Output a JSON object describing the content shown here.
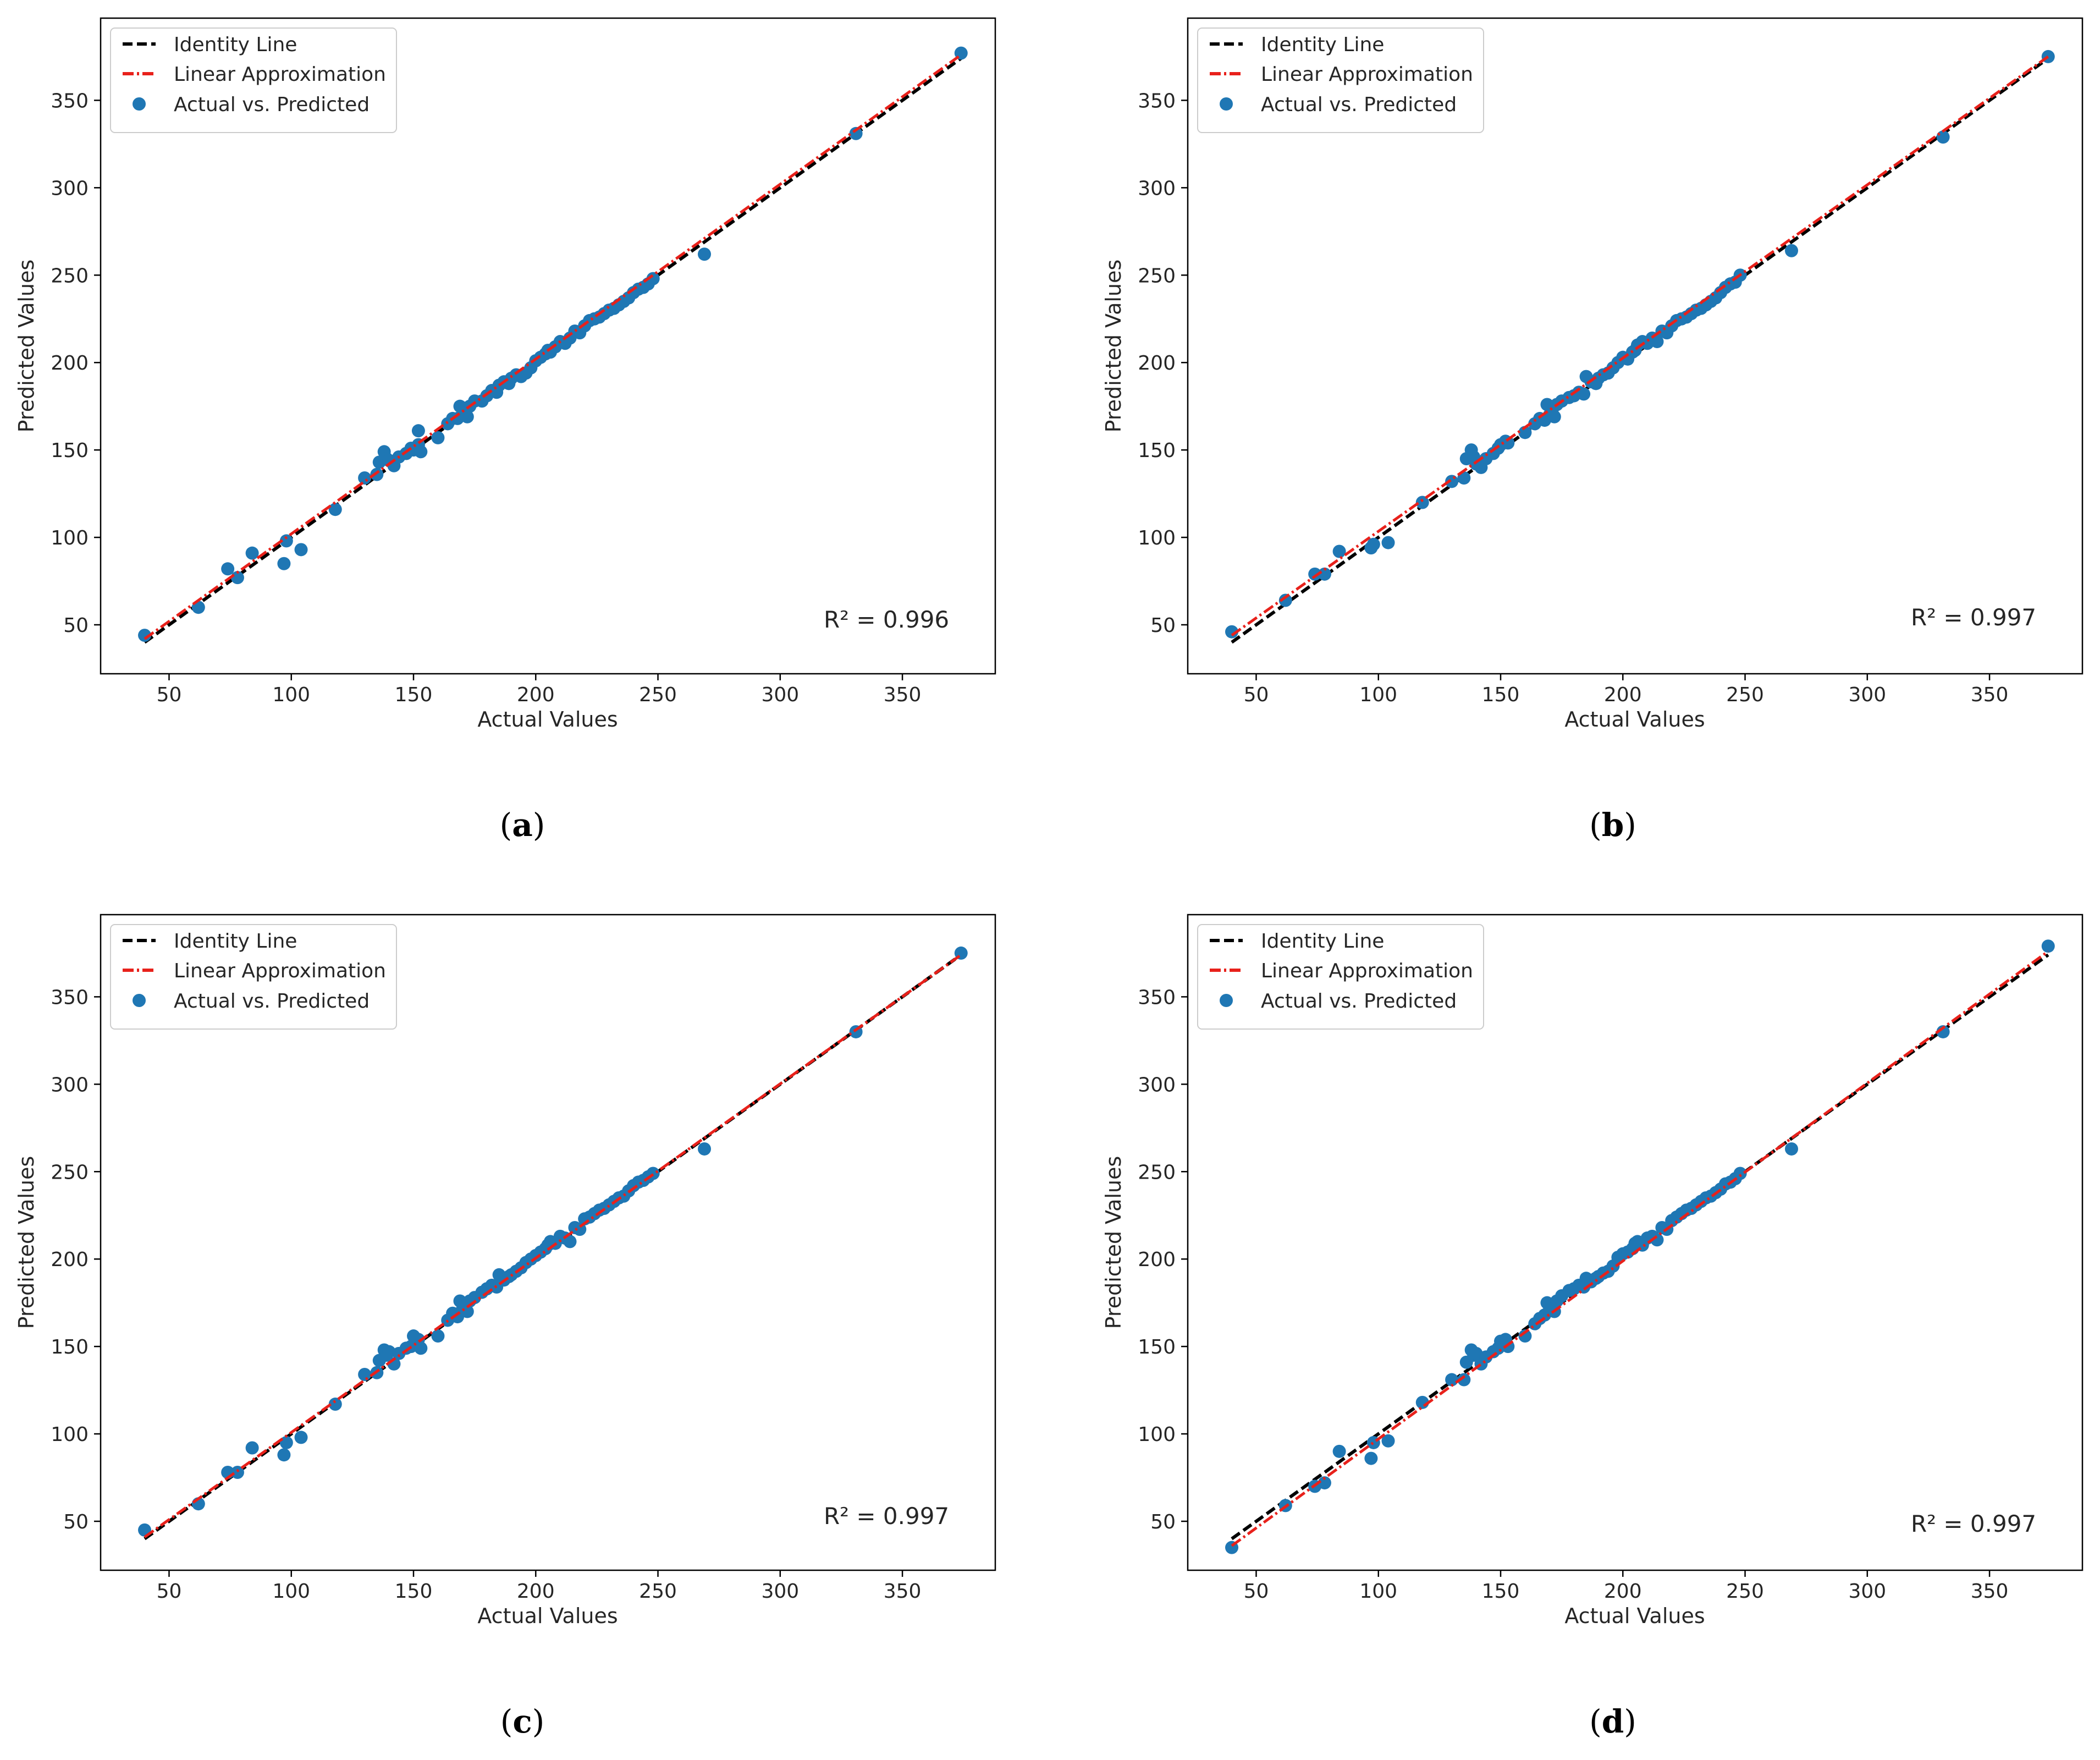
{
  "colors": {
    "identity": "#000000",
    "linear": "#e8211b",
    "points": "#1f77b4",
    "axes": "#000000",
    "legend_border": "#cccccc"
  },
  "chart_data": [
    {
      "type": "scatter",
      "panel": "a",
      "caption": "a",
      "xlabel": "Actual Values",
      "ylabel": "Predicted Values",
      "xlim": [
        22,
        388
      ],
      "ylim": [
        22,
        397
      ],
      "xticks": [
        50,
        100,
        150,
        200,
        250,
        300,
        350
      ],
      "yticks": [
        50,
        100,
        150,
        200,
        250,
        300,
        350
      ],
      "r2_text": "R² = 0.996",
      "legend": [
        "Identity Line",
        "Linear Approximation",
        "Actual vs. Predicted"
      ],
      "identity_line": [
        [
          40,
          40
        ],
        [
          374,
          374
        ]
      ],
      "linear_fit": [
        [
          40,
          42
        ],
        [
          374,
          376
        ]
      ],
      "points": {
        "x": [
          40,
          62,
          74,
          78,
          84,
          97,
          98,
          104,
          118,
          130,
          135,
          136,
          138,
          139,
          140,
          142,
          144,
          147,
          149,
          150,
          152,
          152,
          153,
          160,
          164,
          166,
          168,
          169,
          170,
          171,
          172,
          173,
          175,
          178,
          180,
          182,
          184,
          185,
          187,
          189,
          190,
          192,
          194,
          196,
          198,
          200,
          202,
          204,
          205,
          206,
          208,
          210,
          212,
          214,
          216,
          218,
          220,
          222,
          224,
          226,
          228,
          230,
          232,
          234,
          236,
          238,
          240,
          242,
          244,
          246,
          248,
          269,
          331,
          374
        ],
        "y": [
          44,
          60,
          82,
          77,
          91,
          85,
          98,
          93,
          116,
          134,
          136,
          143,
          149,
          145,
          144,
          141,
          146,
          148,
          151,
          150,
          161,
          153,
          149,
          157,
          165,
          168,
          168,
          175,
          170,
          172,
          169,
          175,
          178,
          178,
          181,
          184,
          183,
          187,
          189,
          188,
          191,
          193,
          192,
          194,
          197,
          201,
          203,
          205,
          207,
          206,
          209,
          212,
          211,
          214,
          218,
          217,
          221,
          224,
          225,
          226,
          228,
          230,
          231,
          233,
          235,
          237,
          240,
          242,
          243,
          245,
          248,
          262,
          331,
          377
        ]
      }
    },
    {
      "type": "scatter",
      "panel": "b",
      "caption": "b",
      "xlabel": "Actual Values",
      "ylabel": "Predicted Values",
      "xlim": [
        22,
        388
      ],
      "ylim": [
        22,
        397
      ],
      "xticks": [
        50,
        100,
        150,
        200,
        250,
        300,
        350
      ],
      "yticks": [
        50,
        100,
        150,
        200,
        250,
        300,
        350
      ],
      "r2_text": "R² = 0.997",
      "legend": [
        "Identity Line",
        "Linear Approximation",
        "Actual vs. Predicted"
      ],
      "identity_line": [
        [
          40,
          40
        ],
        [
          374,
          374
        ]
      ],
      "linear_fit": [
        [
          40,
          44
        ],
        [
          374,
          375
        ]
      ],
      "points": {
        "x": [
          40,
          62,
          74,
          78,
          84,
          97,
          98,
          104,
          118,
          130,
          135,
          136,
          138,
          139,
          140,
          142,
          144,
          147,
          149,
          150,
          152,
          153,
          160,
          164,
          166,
          168,
          169,
          170,
          171,
          172,
          173,
          175,
          178,
          180,
          182,
          184,
          185,
          187,
          189,
          190,
          192,
          194,
          196,
          198,
          200,
          202,
          204,
          205,
          206,
          208,
          210,
          212,
          214,
          216,
          218,
          220,
          222,
          224,
          226,
          228,
          230,
          232,
          234,
          236,
          238,
          240,
          242,
          244,
          246,
          248,
          269,
          331,
          374
        ],
        "y": [
          46,
          64,
          79,
          79,
          92,
          94,
          96,
          97,
          120,
          132,
          134,
          145,
          150,
          146,
          142,
          140,
          145,
          148,
          151,
          153,
          155,
          154,
          160,
          165,
          168,
          167,
          176,
          170,
          172,
          169,
          176,
          178,
          180,
          181,
          183,
          182,
          192,
          189,
          188,
          191,
          193,
          194,
          197,
          200,
          203,
          202,
          206,
          207,
          210,
          212,
          211,
          214,
          212,
          218,
          217,
          221,
          224,
          225,
          226,
          228,
          230,
          231,
          233,
          235,
          237,
          240,
          243,
          245,
          246,
          250,
          264,
          329,
          375
        ]
      }
    },
    {
      "type": "scatter",
      "panel": "c",
      "caption": "c",
      "xlabel": "Actual Values",
      "ylabel": "Predicted Values",
      "xlim": [
        22,
        388
      ],
      "ylim": [
        22,
        397
      ],
      "xticks": [
        50,
        100,
        150,
        200,
        250,
        300,
        350
      ],
      "yticks": [
        50,
        100,
        150,
        200,
        250,
        300,
        350
      ],
      "r2_text": "R² = 0.997",
      "legend": [
        "Identity Line",
        "Linear Approximation",
        "Actual vs. Predicted"
      ],
      "identity_line": [
        [
          40,
          40
        ],
        [
          374,
          374
        ]
      ],
      "linear_fit": [
        [
          40,
          41
        ],
        [
          374,
          374
        ]
      ],
      "points": {
        "x": [
          40,
          62,
          74,
          78,
          84,
          97,
          98,
          104,
          118,
          130,
          135,
          136,
          138,
          139,
          140,
          142,
          144,
          147,
          149,
          150,
          152,
          153,
          160,
          164,
          166,
          168,
          169,
          170,
          171,
          172,
          173,
          175,
          178,
          180,
          182,
          184,
          185,
          187,
          189,
          190,
          192,
          194,
          196,
          198,
          200,
          202,
          204,
          205,
          206,
          208,
          210,
          212,
          214,
          216,
          218,
          220,
          222,
          224,
          226,
          228,
          230,
          232,
          234,
          236,
          238,
          240,
          242,
          244,
          246,
          248,
          269,
          331,
          374
        ],
        "y": [
          45,
          60,
          78,
          78,
          92,
          88,
          95,
          98,
          117,
          134,
          135,
          142,
          148,
          145,
          147,
          140,
          146,
          149,
          150,
          156,
          154,
          149,
          156,
          165,
          169,
          167,
          176,
          171,
          173,
          170,
          176,
          178,
          181,
          183,
          185,
          184,
          191,
          188,
          190,
          191,
          193,
          195,
          198,
          200,
          202,
          204,
          206,
          208,
          210,
          209,
          213,
          212,
          210,
          218,
          217,
          223,
          224,
          226,
          228,
          229,
          231,
          233,
          235,
          236,
          239,
          242,
          244,
          245,
          247,
          249,
          263,
          330,
          375
        ]
      }
    },
    {
      "type": "scatter",
      "panel": "d",
      "caption": "d",
      "xlabel": "Actual Values",
      "ylabel": "Predicted Values",
      "xlim": [
        22,
        388
      ],
      "ylim": [
        22,
        397
      ],
      "xticks": [
        50,
        100,
        150,
        200,
        250,
        300,
        350
      ],
      "yticks": [
        50,
        100,
        150,
        200,
        250,
        300,
        350
      ],
      "r2_text": "R² = 0.997",
      "legend": [
        "Identity Line",
        "Linear Approximation",
        "Actual vs. Predicted"
      ],
      "identity_line": [
        [
          40,
          40
        ],
        [
          374,
          374
        ]
      ],
      "linear_fit": [
        [
          40,
          36
        ],
        [
          374,
          376
        ]
      ],
      "points": {
        "x": [
          40,
          62,
          74,
          78,
          84,
          97,
          98,
          104,
          118,
          130,
          135,
          136,
          138,
          139,
          140,
          142,
          144,
          147,
          149,
          150,
          152,
          153,
          160,
          164,
          166,
          168,
          169,
          170,
          171,
          172,
          173,
          175,
          178,
          180,
          182,
          184,
          185,
          187,
          189,
          190,
          192,
          194,
          196,
          198,
          200,
          202,
          204,
          205,
          206,
          208,
          210,
          212,
          214,
          216,
          218,
          220,
          222,
          224,
          226,
          228,
          230,
          232,
          234,
          236,
          238,
          240,
          242,
          244,
          246,
          248,
          269,
          331,
          374
        ],
        "y": [
          35,
          59,
          70,
          72,
          90,
          86,
          95,
          96,
          118,
          131,
          131,
          141,
          148,
          145,
          146,
          140,
          144,
          147,
          149,
          153,
          154,
          150,
          156,
          163,
          166,
          168,
          175,
          171,
          173,
          170,
          176,
          179,
          182,
          183,
          185,
          184,
          189,
          187,
          189,
          190,
          192,
          193,
          196,
          201,
          203,
          204,
          206,
          209,
          210,
          208,
          212,
          213,
          211,
          218,
          217,
          222,
          224,
          226,
          228,
          229,
          231,
          233,
          235,
          236,
          238,
          240,
          243,
          244,
          246,
          249,
          263,
          330,
          379
        ]
      }
    }
  ]
}
